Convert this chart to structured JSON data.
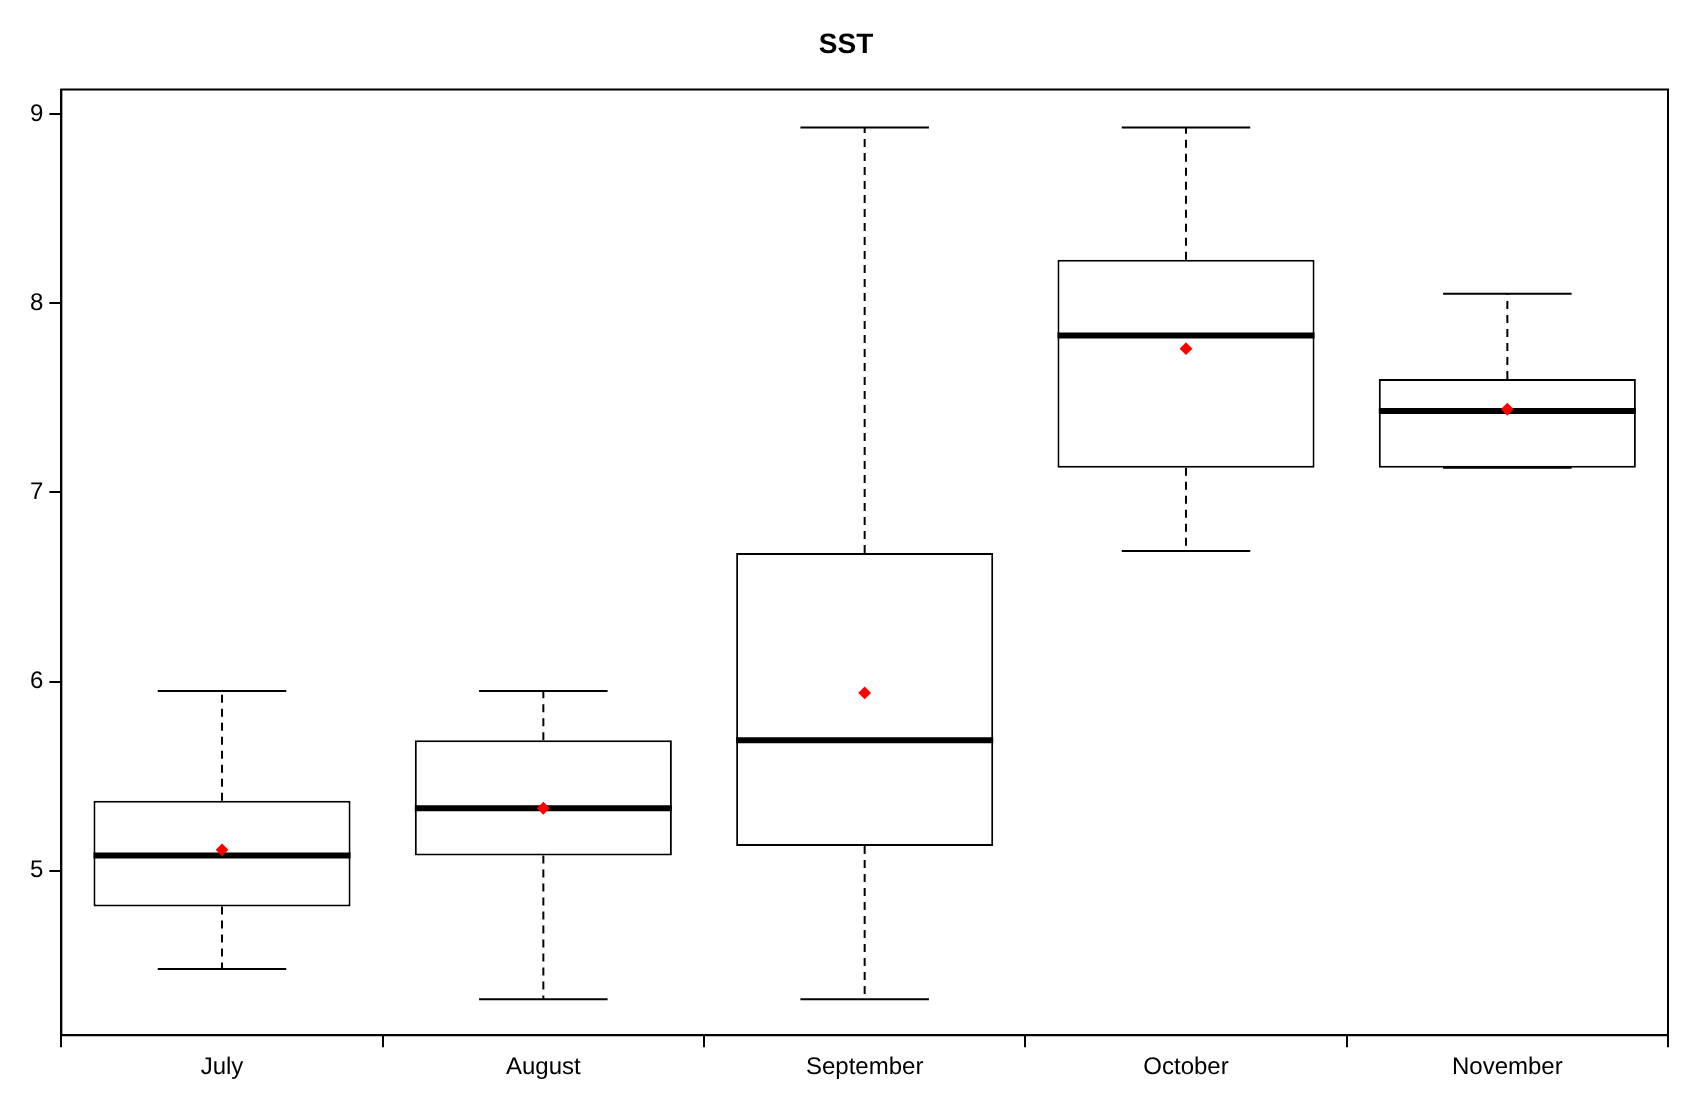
{
  "chart_data": {
    "type": "box",
    "title": "SST",
    "categories": [
      "July",
      "August",
      "September",
      "October",
      "November"
    ],
    "ylim": [
      4.13,
      9.13
    ],
    "yticks": [
      5,
      6,
      7,
      8,
      9
    ],
    "grid": false,
    "series": [
      {
        "color": "#000000",
        "boxes": [
          {
            "low": 4.48,
            "q1": 4.81,
            "median": 5.08,
            "q3": 5.37,
            "high": 5.95,
            "mean": 5.11
          },
          {
            "low": 4.32,
            "q1": 5.08,
            "median": 5.33,
            "q3": 5.69,
            "high": 5.95,
            "mean": 5.33
          },
          {
            "low": 4.32,
            "q1": 5.13,
            "median": 5.69,
            "q3": 6.68,
            "high": 8.93,
            "mean": 5.94
          },
          {
            "low": 6.69,
            "q1": 7.13,
            "median": 7.83,
            "q3": 8.23,
            "high": 8.93,
            "mean": 7.76
          },
          {
            "low": 7.13,
            "q1": 7.13,
            "median": 7.43,
            "q3": 7.6,
            "high": 8.05,
            "mean": 7.44
          }
        ]
      }
    ]
  }
}
